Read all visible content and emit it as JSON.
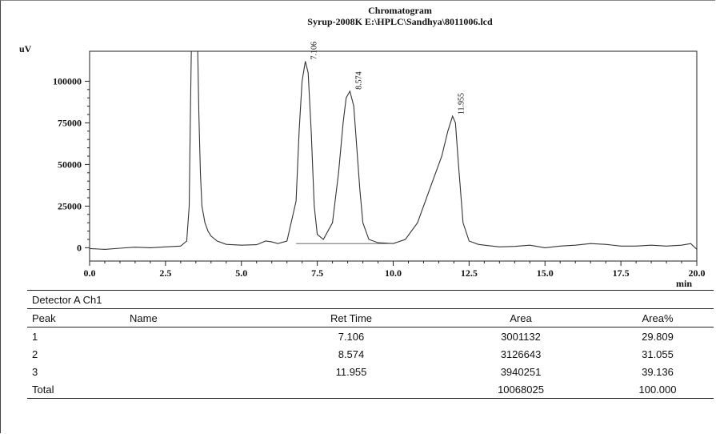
{
  "chart_data": {
    "type": "line",
    "title": "Chromatogram",
    "subtitle": "Syrup-2008K E:\\HPLC\\Sandhya\\8011006.lcd",
    "ylabel": "uV",
    "xlabel": "min",
    "xlim": [
      0.0,
      20.0
    ],
    "ylim": [
      -8000,
      118000
    ],
    "x_ticks": [
      "0.0",
      "2.5",
      "5.0",
      "7.5",
      "10.0",
      "12.5",
      "15.0",
      "17.5",
      "20.0"
    ],
    "x_tick_values": [
      0.0,
      2.5,
      5.0,
      7.5,
      10.0,
      12.5,
      15.0,
      17.5,
      20.0
    ],
    "y_ticks": [
      "0",
      "25000",
      "50000",
      "75000",
      "100000"
    ],
    "y_tick_values": [
      0,
      25000,
      50000,
      75000,
      100000
    ],
    "grid": false,
    "series": [
      {
        "x": [
          0.0,
          0.5,
          1.0,
          1.5,
          2.0,
          2.5,
          3.0,
          3.2,
          3.28,
          3.32,
          3.36,
          3.4,
          3.5,
          3.55,
          3.6,
          3.65,
          3.7,
          3.8,
          3.9,
          4.0,
          4.2,
          4.5,
          5.0,
          5.5,
          5.8,
          6.0,
          6.2,
          6.5,
          6.8,
          6.9,
          7.0,
          7.106,
          7.2,
          7.3,
          7.4,
          7.5,
          7.7,
          8.0,
          8.2,
          8.35,
          8.45,
          8.574,
          8.7,
          8.8,
          8.9,
          9.0,
          9.2,
          9.5,
          10.0,
          10.4,
          10.8,
          11.2,
          11.6,
          11.8,
          11.955,
          12.05,
          12.15,
          12.3,
          12.5,
          12.8,
          13.0,
          13.5,
          14.0,
          14.5,
          15.0,
          15.5,
          16.0,
          16.5,
          17.0,
          17.5,
          18.0,
          18.5,
          19.0,
          19.5,
          19.8,
          20.0
        ],
        "y": [
          -500,
          -1000,
          -300,
          300,
          0,
          500,
          1000,
          4000,
          25000,
          80000,
          130000,
          130000,
          130000,
          130000,
          80000,
          45000,
          25000,
          15000,
          10000,
          7000,
          4000,
          2000,
          1500,
          1800,
          4000,
          3500,
          2500,
          4000,
          28000,
          70000,
          100000,
          112000,
          105000,
          70000,
          25000,
          8000,
          5000,
          15000,
          45000,
          75000,
          90000,
          94000,
          85000,
          60000,
          35000,
          15000,
          5000,
          3000,
          2500,
          5000,
          15000,
          35000,
          55000,
          70000,
          79000,
          75000,
          50000,
          15000,
          4000,
          2000,
          1500,
          500,
          800,
          1500,
          0,
          1000,
          1500,
          2500,
          2000,
          1000,
          1000,
          1500,
          1000,
          1500,
          2500,
          -1000
        ]
      }
    ],
    "peak_labels": [
      {
        "x": 7.106,
        "y": 112000,
        "text": "7.106"
      },
      {
        "x": 8.574,
        "y": 94000,
        "text": "8.574"
      },
      {
        "x": 11.955,
        "y": 79000,
        "text": "11.955"
      }
    ]
  },
  "table": {
    "detector": "Detector A Ch1",
    "columns": [
      "Peak",
      "Name",
      "Ret Time",
      "Area",
      "Area%"
    ],
    "rows": [
      [
        "1",
        "",
        "7.106",
        "3001132",
        "29.809"
      ],
      [
        "2",
        "",
        "8.574",
        "3126643",
        "31.055"
      ],
      [
        "3",
        "",
        "11.955",
        "3940251",
        "39.136"
      ]
    ],
    "total": [
      "Total",
      "",
      "",
      "10068025",
      "100.000"
    ]
  }
}
